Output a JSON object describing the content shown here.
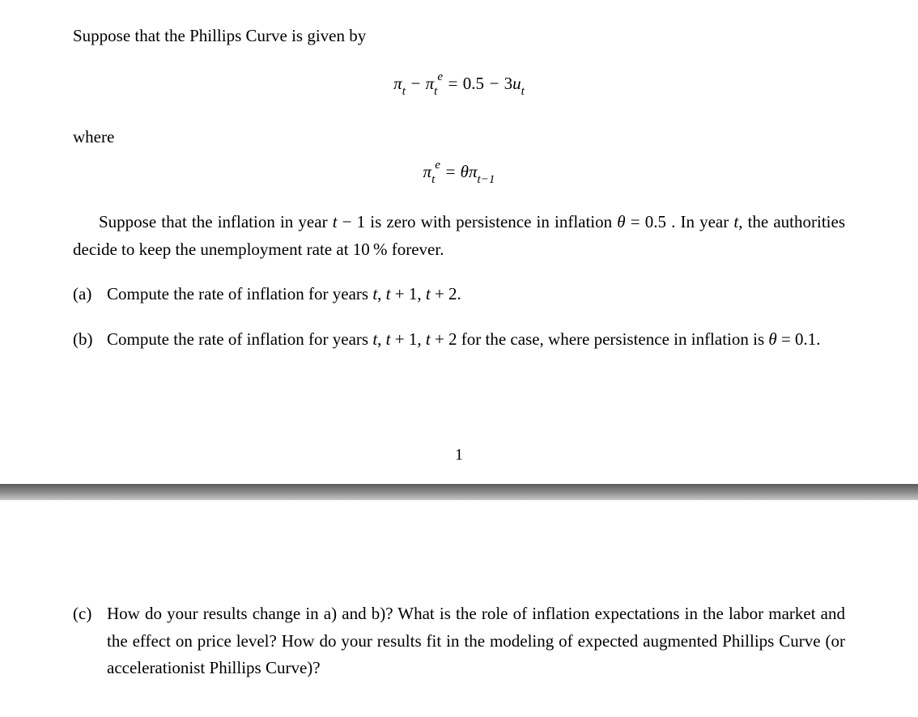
{
  "intro": "Suppose that the Phillips Curve is given by",
  "equation1_html": "<span>π</span><span class='sub'>t</span> − <span>π</span><span class='sub'>t</span><span class='sup'>e</span> = <span class='upright'>0.5</span> − <span class='upright'>3</span><span>u</span><span class='sub'>t</span>",
  "where": "where",
  "equation2_html": "<span>π</span><span class='sub'>t</span><span class='sup'>e</span> = <span>θπ</span><span class='sub'>t−1</span>",
  "setup_html": "Suppose that the inflation in year <i>t</i> − 1 is zero with persistence in inflation <i>θ</i> = 0.5 . In year <i>t</i>, the authorities decide to keep the unemployment rate at 10&thinsp;% forever.",
  "items": {
    "a": {
      "marker": "(a)",
      "body_html": "Compute the rate of inflation for years <i>t</i>, <i>t</i> + 1, <i>t</i> + 2."
    },
    "b": {
      "marker": "(b)",
      "body_html": "Compute the rate of inflation for years <i>t</i>, <i>t</i> + 1, <i>t</i> + 2 for the case, where persistence in inflation is <i>θ</i> = 0.1."
    },
    "c": {
      "marker": "(c)",
      "body_html": "How do your results change in a) and b)? What is the role of inflation expectations in the labor market and the effect on price level? How do your results fit in the modeling of expected augmented Phillips Curve (or accelerationist Phillips Curve)?"
    }
  },
  "page_number": "1"
}
